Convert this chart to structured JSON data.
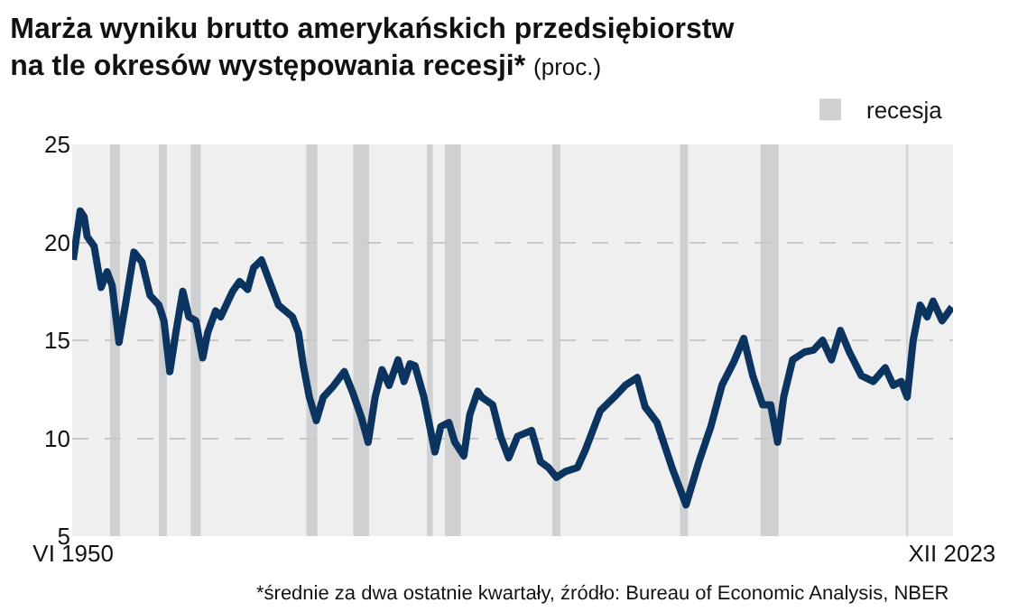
{
  "chart_data": {
    "type": "line",
    "title": "Marża wyniku brutto amerykańskich przedsiębiorstw\nna tle okresów występowania recesji*",
    "subtitle": "(proc.)",
    "x": [
      "1950-06",
      "1951-01",
      "1951-05",
      "1951-08",
      "1952-03",
      "1952-10",
      "1953-04",
      "1953-09",
      "1954-04",
      "1954-11",
      "1955-07",
      "1956-03",
      "1956-11",
      "1957-08",
      "1958-01",
      "1958-07",
      "1959-01",
      "1959-08",
      "1960-02",
      "1960-09",
      "1961-04",
      "1961-09",
      "1962-05",
      "1962-10",
      "1963-10",
      "1964-05",
      "1965-01",
      "1965-07",
      "1966-03",
      "1966-11",
      "1967-08",
      "1968-10",
      "1969-04",
      "1969-09",
      "1970-03",
      "1970-10",
      "1971-05",
      "1972-02",
      "1973-02",
      "1973-10",
      "1974-07",
      "1975-02",
      "1975-09",
      "1976-04",
      "1976-11",
      "1977-08",
      "1978-02",
      "1978-08",
      "1979-01",
      "1979-10",
      "1980-09",
      "1981-03",
      "1981-11",
      "1982-05",
      "1983-02",
      "1983-08",
      "1984-04",
      "1984-08",
      "1985-07",
      "1986-03",
      "1986-11",
      "1987-08",
      "1988-10",
      "1989-07",
      "1990-03",
      "1990-11",
      "1991-08",
      "1992-08",
      "1993-04",
      "1994-07",
      "1995-09",
      "1996-08",
      "1997-08",
      "1998-04",
      "1999-04",
      "2000-07",
      "2001-09",
      "2002-10",
      "2003-10",
      "2004-09",
      "2005-09",
      "2006-07",
      "2007-04",
      "2008-02",
      "2008-10",
      "2009-05",
      "2009-11",
      "2010-08",
      "2011-08",
      "2012-05",
      "2013-02",
      "2013-11",
      "2014-08",
      "2015-05",
      "2016-05",
      "2017-05",
      "2018-05",
      "2019-01",
      "2019-09",
      "2020-03",
      "2020-09",
      "2021-04",
      "2021-11",
      "2022-05",
      "2023-02",
      "2023-12"
    ],
    "series": [
      {
        "color": "#0b3460",
        "values": [
          19.1,
          21.6,
          21.3,
          20.3,
          19.8,
          17.7,
          18.5,
          17.8,
          14.9,
          17.0,
          19.5,
          19.0,
          17.3,
          16.8,
          16.0,
          13.4,
          15.4,
          17.5,
          16.2,
          16.0,
          14.1,
          15.4,
          16.5,
          16.2,
          17.5,
          18.0,
          17.6,
          18.7,
          19.1,
          18.0,
          16.8,
          16.2,
          15.4,
          13.7,
          12.1,
          10.9,
          12.1,
          12.6,
          13.4,
          12.4,
          11.1,
          9.8,
          12.1,
          13.5,
          12.7,
          14.0,
          12.9,
          13.8,
          13.7,
          12.1,
          9.3,
          10.6,
          10.8,
          9.8,
          9.1,
          11.2,
          12.4,
          12.1,
          11.7,
          10.1,
          9.0,
          10.1,
          10.4,
          8.8,
          8.5,
          8.0,
          8.3,
          8.5,
          9.4,
          11.4,
          12.1,
          12.7,
          13.1,
          11.6,
          10.8,
          8.5,
          6.6,
          8.8,
          10.6,
          12.7,
          13.9,
          15.1,
          13.2,
          11.7,
          11.7,
          9.8,
          12.1,
          14.0,
          14.4,
          14.5,
          15.0,
          14.0,
          15.5,
          14.4,
          13.2,
          12.9,
          13.6,
          12.7,
          12.9,
          12.1,
          15.0,
          16.8,
          16.2,
          17.0,
          16.0,
          16.7
        ]
      }
    ],
    "xlim": [
      "1950-05",
      "2024-01"
    ],
    "xticks": [
      {
        "value": "1950-06",
        "label": "VI 1950"
      },
      {
        "value": "2023-12",
        "label": "XII 2023"
      }
    ],
    "ylim": [
      5,
      25
    ],
    "yticks": [
      5,
      10,
      15,
      20,
      25
    ],
    "grid": "y",
    "legend": "top right",
    "line_style": "solid",
    "marker": "none",
    "bands": [
      {
        "axis": "x",
        "from": "1953-07",
        "to": "1954-05",
        "label": "recesja",
        "color": "#cfd0d2"
      },
      {
        "axis": "x",
        "from": "1957-08",
        "to": "1958-04",
        "color": "#cfd0d2"
      },
      {
        "axis": "x",
        "from": "1960-04",
        "to": "1961-02",
        "color": "#cfd0d2"
      },
      {
        "axis": "x",
        "from": "1969-12",
        "to": "1970-11",
        "color": "#cfd0d2"
      },
      {
        "axis": "x",
        "from": "1973-11",
        "to": "1975-03",
        "color": "#cfd0d2"
      },
      {
        "axis": "x",
        "from": "1980-01",
        "to": "1980-07",
        "color": "#cfd0d2"
      },
      {
        "axis": "x",
        "from": "1981-07",
        "to": "1982-11",
        "color": "#cfd0d2"
      },
      {
        "axis": "x",
        "from": "1990-07",
        "to": "1991-03",
        "color": "#cfd0d2"
      },
      {
        "axis": "x",
        "from": "2001-03",
        "to": "2001-11",
        "color": "#cfd0d2"
      },
      {
        "axis": "x",
        "from": "2007-12",
        "to": "2009-06",
        "color": "#cfd0d2"
      },
      {
        "axis": "x",
        "from": "2020-02",
        "to": "2020-04",
        "color": "#cfd0d2"
      }
    ],
    "annotations": [
      "*średnie za dwa ostatnie kwartały, źródło: Bureau of Economic Analysis, NBER"
    ]
  }
}
